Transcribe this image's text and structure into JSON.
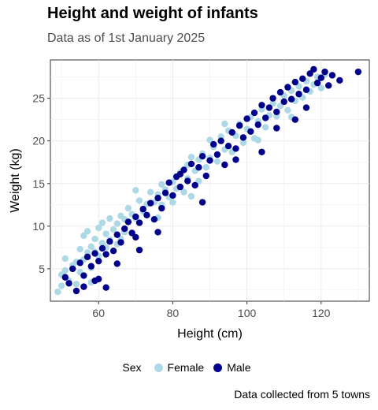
{
  "title": "Height and weight of infants",
  "subtitle": "Data as of 1st January 2025",
  "caption": "Data collected from 5 towns",
  "legend": {
    "title": "Sex",
    "entries": [
      {
        "label": "Female",
        "color": "#add8e6"
      },
      {
        "label": "Male",
        "color": "#00008b"
      }
    ]
  },
  "chart_data": {
    "type": "scatter",
    "title": "Height and weight of infants",
    "subtitle": "Data as of 1st January 2025",
    "xlabel": "Height (cm)",
    "ylabel": "Weight (kg)",
    "xlim": [
      47,
      133
    ],
    "ylim": [
      1.2,
      29.5
    ],
    "xticks": [
      60,
      80,
      100,
      120
    ],
    "yticks": [
      5,
      10,
      15,
      20,
      25
    ],
    "grid": true,
    "legend_position": "bottom",
    "series": [
      {
        "name": "Female",
        "color": "#add8e6",
        "points": [
          [
            49,
            2.3
          ],
          [
            50,
            3.0
          ],
          [
            50,
            4.3
          ],
          [
            51,
            4.8
          ],
          [
            51,
            6.2
          ],
          [
            52,
            3.6
          ],
          [
            53,
            5.4
          ],
          [
            54,
            5.8
          ],
          [
            54,
            3.2
          ],
          [
            55,
            4.6
          ],
          [
            55,
            7.3
          ],
          [
            56,
            8.9
          ],
          [
            56,
            6.1
          ],
          [
            57,
            6.9
          ],
          [
            57,
            9.4
          ],
          [
            58,
            7.6
          ],
          [
            58,
            5.1
          ],
          [
            59,
            7.0
          ],
          [
            59,
            8.5
          ],
          [
            60,
            6.5
          ],
          [
            60,
            9.8
          ],
          [
            61,
            10.4
          ],
          [
            61,
            8.0
          ],
          [
            62,
            7.5
          ],
          [
            62,
            9.1
          ],
          [
            63,
            10.9
          ],
          [
            63,
            8.4
          ],
          [
            64,
            9.6
          ],
          [
            65,
            10.3
          ],
          [
            65,
            7.9
          ],
          [
            66,
            11.2
          ],
          [
            67,
            10.8
          ],
          [
            67,
            9.3
          ],
          [
            68,
            12.1
          ],
          [
            69,
            11.4
          ],
          [
            70,
            10.9
          ],
          [
            71,
            13.0
          ],
          [
            72,
            11.7
          ],
          [
            73,
            12.6
          ],
          [
            74,
            14.0
          ],
          [
            75,
            12.8
          ],
          [
            76,
            13.7
          ],
          [
            77,
            14.9
          ],
          [
            77,
            12.5
          ],
          [
            78,
            14.3
          ],
          [
            79,
            13.4
          ],
          [
            80,
            15.2
          ],
          [
            80,
            12.8
          ],
          [
            81,
            14.4
          ],
          [
            82,
            16.3
          ],
          [
            83,
            14.0
          ],
          [
            84,
            15.6
          ],
          [
            84,
            17.2
          ],
          [
            85,
            18.1
          ],
          [
            86,
            16.5
          ],
          [
            87,
            17.8
          ],
          [
            87,
            15.3
          ],
          [
            88,
            18.5
          ],
          [
            89,
            16.9
          ],
          [
            90,
            18.0
          ],
          [
            90,
            20.1
          ],
          [
            91,
            19.3
          ],
          [
            92,
            17.6
          ],
          [
            93,
            20.5
          ],
          [
            94,
            19.0
          ],
          [
            95,
            21.2
          ],
          [
            96,
            18.7
          ],
          [
            97,
            20.6
          ],
          [
            98,
            22.0
          ],
          [
            99,
            19.8
          ],
          [
            100,
            21.4
          ],
          [
            101,
            22.8
          ],
          [
            102,
            20.3
          ],
          [
            103,
            22.3
          ],
          [
            104,
            23.7
          ],
          [
            105,
            21.6
          ],
          [
            106,
            23.0
          ],
          [
            107,
            24.4
          ],
          [
            108,
            22.9
          ],
          [
            109,
            24.1
          ],
          [
            110,
            25.3
          ],
          [
            111,
            23.6
          ],
          [
            112,
            25.9
          ],
          [
            113,
            24.7
          ],
          [
            114,
            26.4
          ],
          [
            115,
            25.1
          ],
          [
            116,
            27.0
          ],
          [
            117,
            25.8
          ],
          [
            118,
            26.6
          ],
          [
            119,
            27.5
          ],
          [
            120,
            26.2
          ],
          [
            121,
            27.8
          ],
          [
            94,
            22.0
          ],
          [
            85,
            13.5
          ],
          [
            76,
            11.0
          ],
          [
            66,
            8.5
          ],
          [
            103,
            20.1
          ],
          [
            112,
            22.8
          ],
          [
            58,
            3.4
          ],
          [
            70,
            14.2
          ]
        ]
      },
      {
        "name": "Male",
        "color": "#00008b",
        "points": [
          [
            51,
            4.0
          ],
          [
            52,
            3.3
          ],
          [
            53,
            5.0
          ],
          [
            54,
            2.4
          ],
          [
            55,
            5.7
          ],
          [
            56,
            4.2
          ],
          [
            57,
            6.4
          ],
          [
            58,
            5.3
          ],
          [
            59,
            3.6
          ],
          [
            59,
            6.8
          ],
          [
            60,
            5.9
          ],
          [
            61,
            7.4
          ],
          [
            62,
            2.8
          ],
          [
            62,
            6.7
          ],
          [
            63,
            8.2
          ],
          [
            64,
            7.1
          ],
          [
            65,
            9.0
          ],
          [
            66,
            8.1
          ],
          [
            67,
            9.7
          ],
          [
            68,
            10.5
          ],
          [
            69,
            9.2
          ],
          [
            70,
            11.1
          ],
          [
            70,
            8.7
          ],
          [
            71,
            10.4
          ],
          [
            72,
            12.0
          ],
          [
            73,
            11.3
          ],
          [
            74,
            12.7
          ],
          [
            75,
            10.8
          ],
          [
            76,
            13.3
          ],
          [
            77,
            12.1
          ],
          [
            78,
            13.9
          ],
          [
            79,
            15.1
          ],
          [
            80,
            13.6
          ],
          [
            81,
            15.8
          ],
          [
            82,
            14.6
          ],
          [
            83,
            16.6
          ],
          [
            84,
            15.3
          ],
          [
            85,
            17.3
          ],
          [
            86,
            14.8
          ],
          [
            87,
            16.9
          ],
          [
            88,
            18.2
          ],
          [
            89,
            15.9
          ],
          [
            90,
            17.7
          ],
          [
            91,
            19.6
          ],
          [
            92,
            18.4
          ],
          [
            93,
            20.0
          ],
          [
            94,
            17.2
          ],
          [
            95,
            19.4
          ],
          [
            96,
            21.0
          ],
          [
            97,
            19.1
          ],
          [
            98,
            21.8
          ],
          [
            99,
            20.4
          ],
          [
            100,
            22.6
          ],
          [
            101,
            21.1
          ],
          [
            102,
            23.3
          ],
          [
            103,
            21.9
          ],
          [
            104,
            24.2
          ],
          [
            105,
            22.7
          ],
          [
            106,
            23.9
          ],
          [
            107,
            25.0
          ],
          [
            108,
            23.4
          ],
          [
            109,
            25.7
          ],
          [
            110,
            24.6
          ],
          [
            111,
            26.3
          ],
          [
            112,
            24.9
          ],
          [
            113,
            26.9
          ],
          [
            114,
            25.5
          ],
          [
            115,
            27.3
          ],
          [
            116,
            26.0
          ],
          [
            117,
            27.9
          ],
          [
            118,
            28.4
          ],
          [
            119,
            26.8
          ],
          [
            120,
            27.4
          ],
          [
            121,
            28.1
          ],
          [
            122,
            26.5
          ],
          [
            123,
            27.7
          ],
          [
            125,
            27.1
          ],
          [
            130,
            28.1
          ],
          [
            65,
            5.6
          ],
          [
            76,
            9.3
          ],
          [
            88,
            12.8
          ],
          [
            97,
            17.8
          ],
          [
            108,
            21.5
          ],
          [
            113,
            22.5
          ],
          [
            60,
            3.8
          ],
          [
            82,
            16.1
          ],
          [
            71,
            7.2
          ],
          [
            104,
            18.7
          ],
          [
            116,
            23.9
          ],
          [
            56,
            2.9
          ]
        ]
      }
    ]
  }
}
